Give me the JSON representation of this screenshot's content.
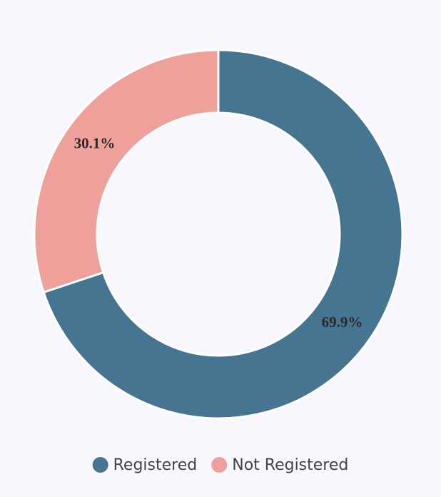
{
  "chart_data": {
    "type": "donut",
    "categories": [
      "Registered",
      "Not Registered"
    ],
    "values": [
      69.9,
      30.1
    ],
    "value_labels": [
      "69.9%",
      "30.1%"
    ],
    "colors": [
      "#467591",
      "#f0a09a"
    ],
    "legend": "bottom"
  }
}
